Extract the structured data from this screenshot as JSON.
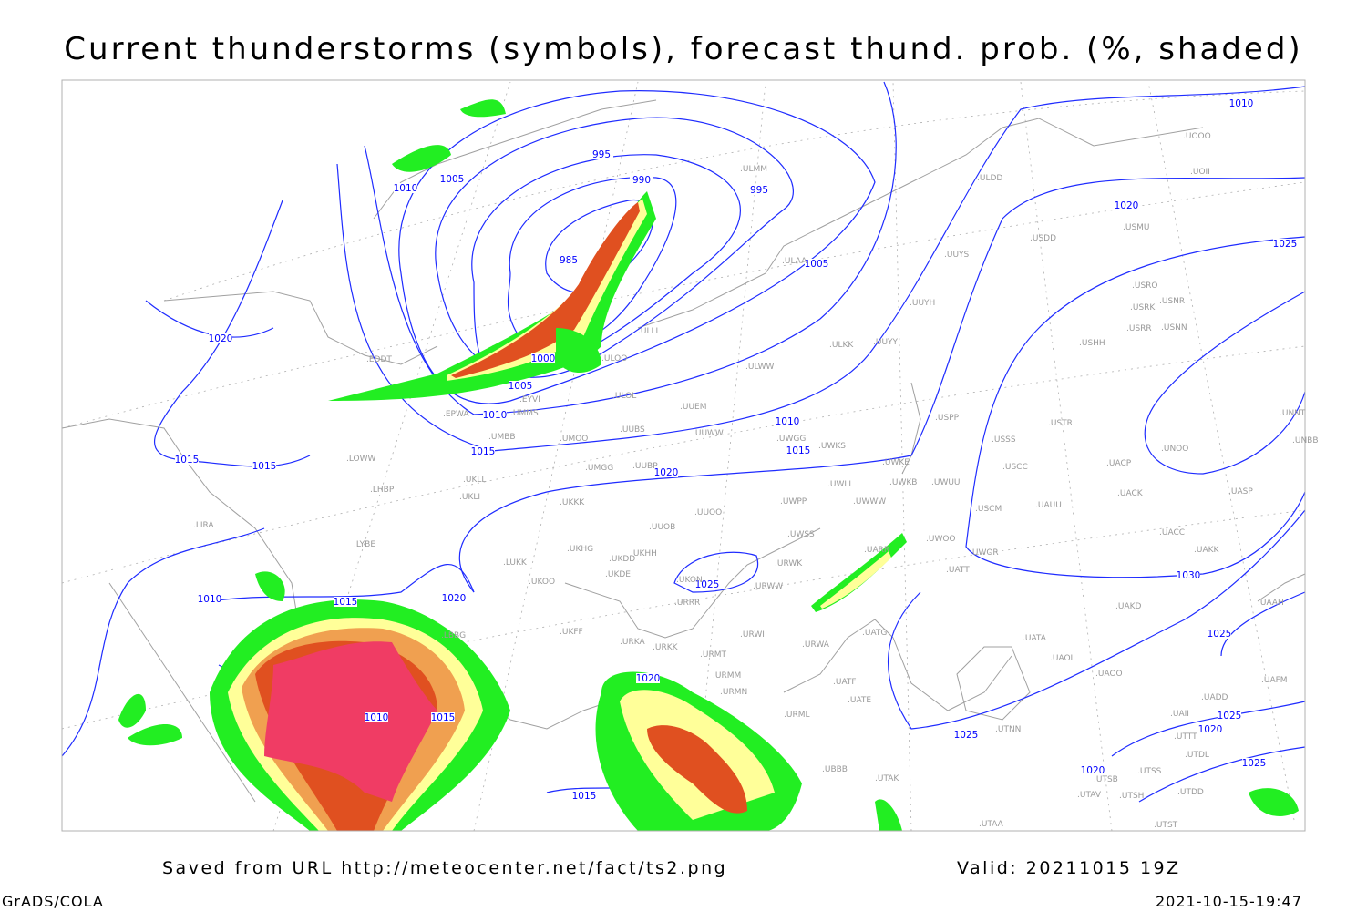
{
  "title": "Current thunderstorms (symbols), forecast thund. prob. (%, shaded)",
  "footer": {
    "saved": "Saved from URL http://meteocenter.net/fact/ts2.png",
    "valid": "Valid: 20211015 19Z",
    "software": "GrADS/COLA",
    "timestamp": "2021-10-15-19:47"
  },
  "colors": {
    "isobar": "#1f2cff",
    "coast": "#a0a0a0",
    "prob_low": "#22ee22",
    "prob_mid": "#ffff99",
    "prob_high": "#f0a050",
    "prob_very_high": "#e05020",
    "prob_max": "#f03c64"
  },
  "isobar_labels": [
    "995",
    "990",
    "995",
    "1010",
    "1005",
    "985",
    "1005",
    "1020",
    "1000",
    "1005",
    "1010",
    "1010",
    "1015",
    "1015",
    "1015",
    "1015",
    "1020",
    "1010",
    "1020",
    "1025",
    "1030",
    "1025",
    "1025",
    "1010",
    "1015",
    "1020",
    "1020",
    "1010",
    "1015",
    "1015",
    "1025",
    "1025",
    "1020",
    "1025",
    "1020"
  ],
  "stations": [
    "ULMM",
    "ULDD",
    "UOOO",
    "UOII",
    "USMU",
    "USDD",
    "UUYS",
    "ULAA",
    "USRO",
    "USNR",
    "USRK",
    "USRR",
    "USNN",
    "UUYH",
    "USHH",
    "ULKK",
    "UUYY",
    "ULLI",
    "ULOO",
    "ULWW",
    "EDDT",
    "EYVI",
    "ULOL",
    "UUEM",
    "EPWA",
    "UMMS",
    "USPP",
    "USTR",
    "UMOO",
    "UUBS",
    "UUWW",
    "UWGG",
    "UWKS",
    "USSS",
    "UNOO",
    "UNNT",
    "UNBB",
    "UMBB",
    "LOWW",
    "UMGG",
    "UUBP",
    "UWKE",
    "USCC",
    "UACP",
    "UKLL",
    "UWKB",
    "UWUU",
    "UWLL",
    "LHBP",
    "UKLI",
    "UKKK",
    "UWPP",
    "UWWW",
    "USCM",
    "UAUU",
    "UACK",
    "UASP",
    "UUOO",
    "UUOB",
    "UWSS",
    "UACC",
    "LIRA",
    "LYBE",
    "UWOO",
    "UWOR",
    "UAKK",
    "UKHG",
    "UKDD",
    "UKHH",
    "LUKK",
    "UARR",
    "URWK",
    "UATT",
    "UKDE",
    "UKOO",
    "UKON",
    "URWW",
    "UAKD",
    "URRR",
    "UAAH",
    "UKFF",
    "LBBG",
    "URKA",
    "URKK",
    "URWI",
    "UATG",
    "URWA",
    "URMT",
    "UATA",
    "UAOL",
    "URMM",
    "UATF",
    "UAOO",
    "UAFM",
    "URMN",
    "UATE",
    "UADD",
    "URML",
    "UAII",
    "UTTT",
    "UTNN",
    "UBBB",
    "UTDL",
    "UTAK",
    "UTSB",
    "UTSS",
    "UTAV",
    "UTSH",
    "UTDD",
    "UTST",
    "UTAA"
  ]
}
